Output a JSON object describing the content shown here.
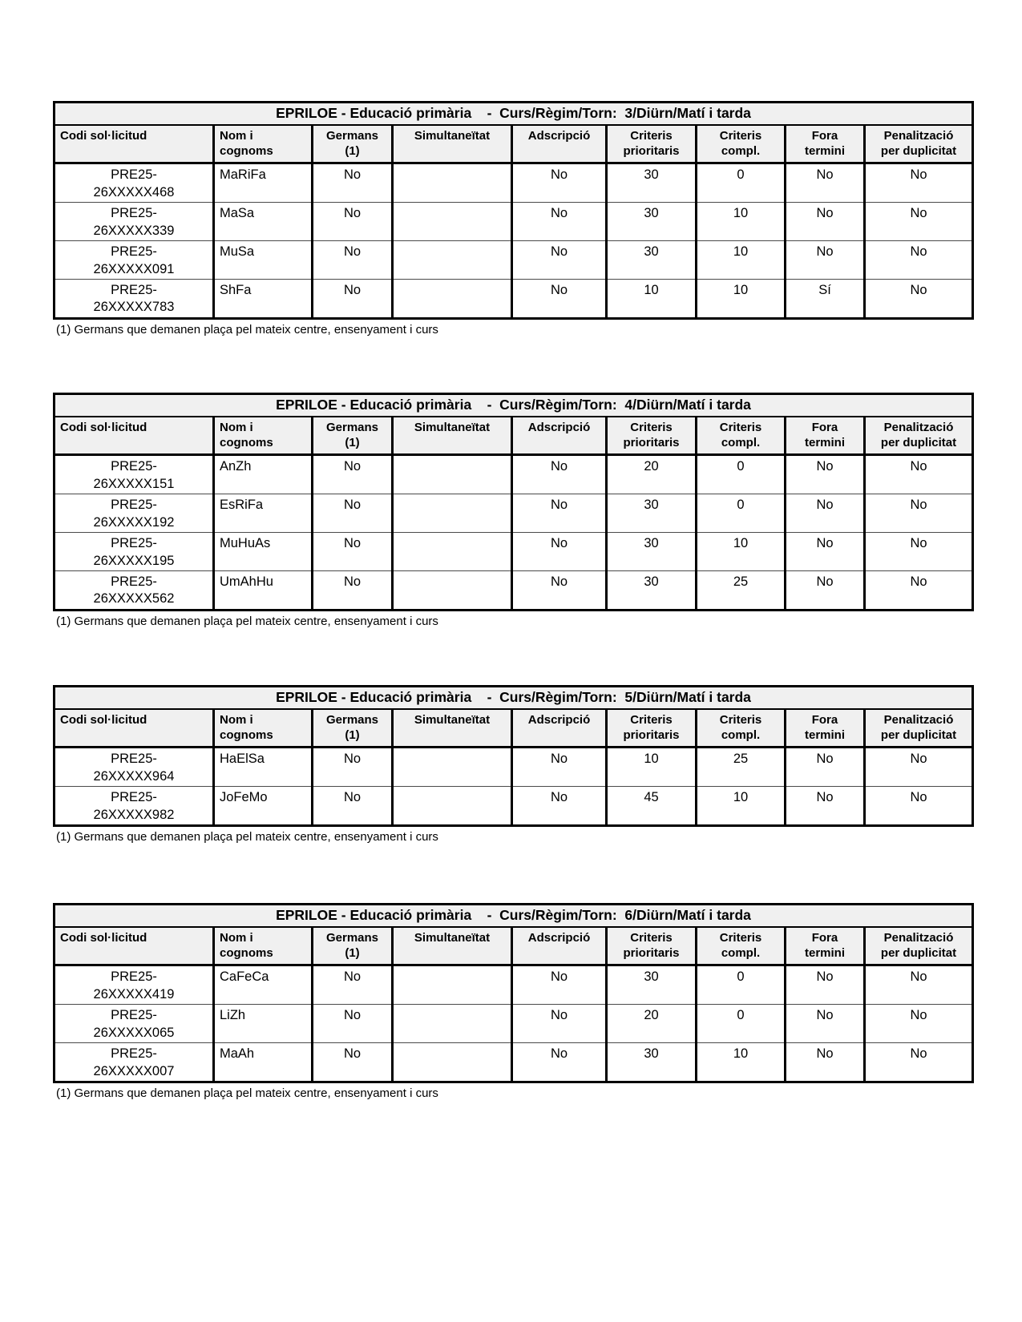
{
  "colors": {
    "page_background": "#ffffff",
    "header_background": "#f0f0f0",
    "border": "#000000",
    "row_divider": "#4a4a4a",
    "text": "#000000"
  },
  "columns": [
    "Codi sol·licitud",
    "Nom i\ncognoms",
    "Germans\n(1)",
    "Simultaneïtat",
    "Adscripció",
    "Criteris\nprioritaris",
    "Criteris\ncompl.",
    "Fora\ntermini",
    "Penalització\nper duplicitat"
  ],
  "footnote": "(1) Germans que demanen plaça pel mateix centre, ensenyament i curs",
  "tables": [
    {
      "title": "EPRILOE - Educació primària    -  Curs/Règim/Torn:  3/Diürn/Matí i tarda",
      "rows": [
        {
          "cells": [
            "PRE25-\n26XXXXX468",
            "MaRiFa",
            "No",
            "",
            "No",
            "30",
            "0",
            "No",
            "No"
          ]
        },
        {
          "cells": [
            "PRE25-\n26XXXXX339",
            "MaSa",
            "No",
            "",
            "No",
            "30",
            "10",
            "No",
            "No"
          ]
        },
        {
          "cells": [
            "PRE25-\n26XXXXX091",
            "MuSa",
            "No",
            "",
            "No",
            "30",
            "10",
            "No",
            "No"
          ]
        },
        {
          "cells": [
            "PRE25-\n26XXXXX783",
            "ShFa",
            "No",
            "",
            "No",
            "10",
            "10",
            "Sí",
            "No"
          ]
        }
      ]
    },
    {
      "title": "EPRILOE - Educació primària    -  Curs/Règim/Torn:  4/Diürn/Matí i tarda",
      "rows": [
        {
          "cells": [
            "PRE25-\n26XXXXX151",
            "AnZh",
            "No",
            "",
            "No",
            "20",
            "0",
            "No",
            "No"
          ]
        },
        {
          "cells": [
            "PRE25-\n26XXXXX192",
            "EsRiFa",
            "No",
            "",
            "No",
            "30",
            "0",
            "No",
            "No"
          ]
        },
        {
          "cells": [
            "PRE25-\n26XXXXX195",
            "MuHuAs",
            "No",
            "",
            "No",
            "30",
            "10",
            "No",
            "No"
          ]
        },
        {
          "cells": [
            "PRE25-\n26XXXXX562",
            "UmAhHu",
            "No",
            "",
            "No",
            "30",
            "25",
            "No",
            "No"
          ]
        }
      ]
    },
    {
      "title": "EPRILOE - Educació primària    -  Curs/Règim/Torn:  5/Diürn/Matí i tarda",
      "rows": [
        {
          "cells": [
            "PRE25-\n26XXXXX964",
            "HaElSa",
            "No",
            "",
            "No",
            "10",
            "25",
            "No",
            "No"
          ]
        },
        {
          "cells": [
            "PRE25-\n26XXXXX982",
            "JoFeMo",
            "No",
            "",
            "No",
            "45",
            "10",
            "No",
            "No"
          ]
        }
      ]
    },
    {
      "title": "EPRILOE - Educació primària    -  Curs/Règim/Torn:  6/Diürn/Matí i tarda",
      "rows": [
        {
          "cells": [
            "PRE25-\n26XXXXX419",
            "CaFeCa",
            "No",
            "",
            "No",
            "30",
            "0",
            "No",
            "No"
          ]
        },
        {
          "cells": [
            "PRE25-\n26XXXXX065",
            "LiZh",
            "No",
            "",
            "No",
            "20",
            "0",
            "No",
            "No"
          ]
        },
        {
          "cells": [
            "PRE25-\n26XXXXX007",
            "MaAh",
            "No",
            "",
            "No",
            "30",
            "10",
            "No",
            "No"
          ]
        }
      ]
    }
  ]
}
